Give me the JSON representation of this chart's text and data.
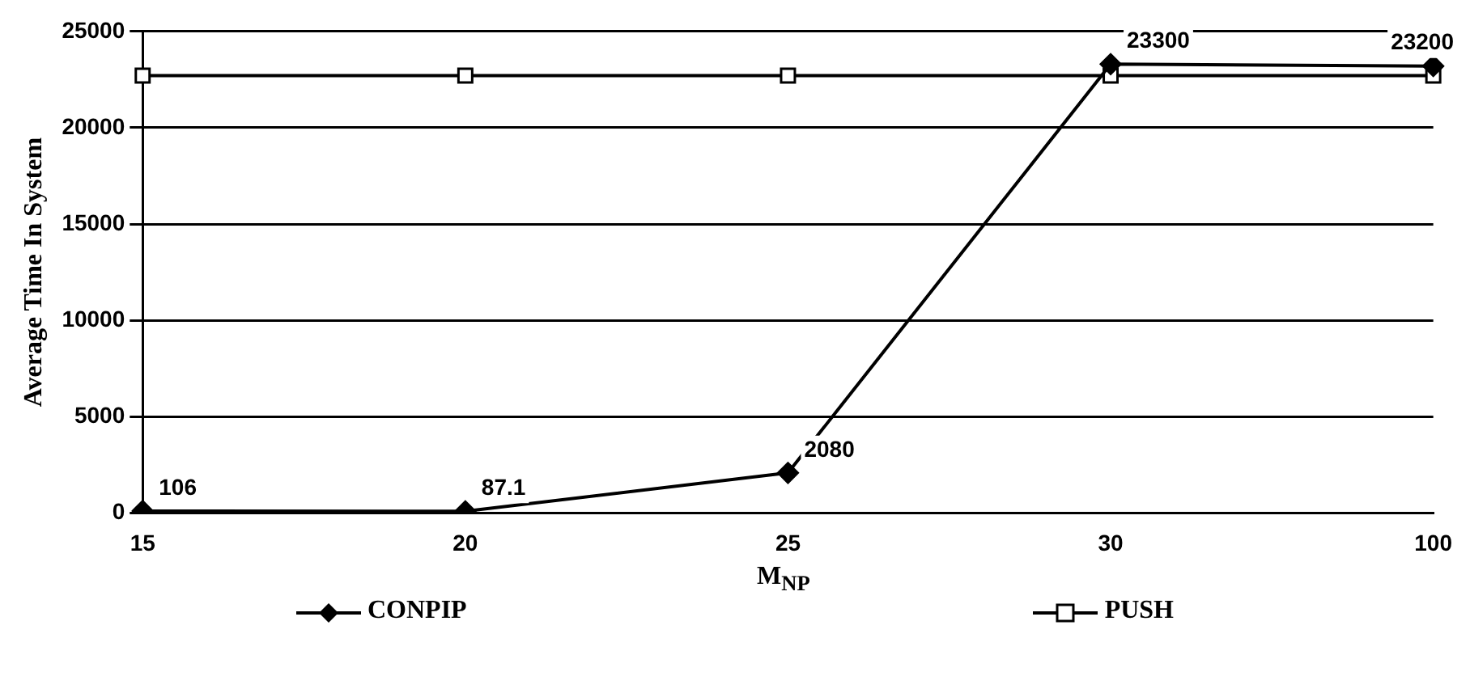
{
  "chart_data": {
    "type": "line",
    "xlabel": "M$_{NP}$",
    "ylabel": "Average Time In System",
    "categories": [
      "15",
      "20",
      "25",
      "30",
      "100"
    ],
    "series": [
      {
        "name": "CONPIP",
        "color": "#000000",
        "marker": "diamond",
        "values": [
          106,
          87.1,
          2080,
          23300,
          23200
        ],
        "value_labels": [
          "106",
          "87.1",
          "2080",
          "23300",
          "23200"
        ]
      },
      {
        "name": "PUSH",
        "color": "#000000",
        "marker": "square",
        "values": [
          22700,
          22700,
          22700,
          22700,
          22700
        ]
      }
    ],
    "ylim": [
      0,
      25000
    ],
    "yticks": [
      0,
      5000,
      10000,
      15000,
      20000,
      25000
    ],
    "grid": "y",
    "legend": "bottom",
    "line_style": "solid"
  }
}
